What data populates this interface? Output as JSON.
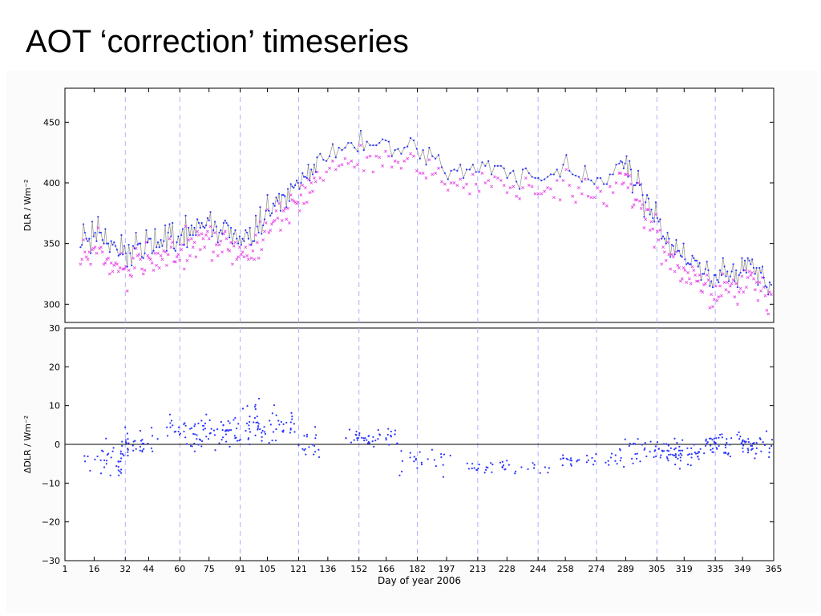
{
  "slide": {
    "title": "AOT ‘correction’ timeseries"
  },
  "colors": {
    "primary_points": "#2a35ff",
    "alt_points": "#e64ce6",
    "trace_line": "#9a9a9a",
    "guide_lines": "#b0b0ff",
    "zero_line": "#000000",
    "panel_background": "#fbfbfb"
  },
  "chart_data": [
    {
      "type": "scatter",
      "title": "",
      "xlabel": "",
      "ylabel": "DLR / Wm⁻²",
      "xlim": [
        1,
        365
      ],
      "ylim": [
        285,
        478
      ],
      "yticks": [
        "300",
        "350",
        "400",
        "450"
      ],
      "xticks": [],
      "legend": "none",
      "grid": false,
      "day_markers": [
        32,
        60,
        91,
        121,
        152,
        182,
        213,
        244,
        274,
        305,
        335
      ],
      "seasonal_envelope": {
        "x": [
          9,
          20,
          32,
          45,
          60,
          75,
          91,
          105,
          121,
          136,
          152,
          166,
          182,
          197,
          213,
          228,
          244,
          258,
          274,
          289,
          296,
          305,
          319,
          335,
          349,
          365
        ],
        "y": [
          350,
          355,
          342,
          352,
          358,
          365,
          352,
          375,
          398,
          430,
          432,
          432,
          425,
          412,
          415,
          408,
          405,
          412,
          400,
          415,
          400,
          362,
          340,
          322,
          333,
          318
        ]
      },
      "variability": 26,
      "series": [
        {
          "values": [],
          "marker": "dot",
          "line": true
        },
        {
          "values": [],
          "marker": "x",
          "line": false
        }
      ]
    },
    {
      "type": "scatter",
      "title": "",
      "xlabel": "Day of year 2006",
      "ylabel": "ΔDLR / Wm⁻²",
      "xlim": [
        1,
        365
      ],
      "ylim": [
        -30,
        30
      ],
      "yticks": [
        "−30",
        "−20",
        "−10",
        "0",
        "10",
        "20",
        "30"
      ],
      "xticks": [
        "1",
        "16",
        "32",
        "44",
        "60",
        "75",
        "91",
        "105",
        "121",
        "136",
        "152",
        "166",
        "182",
        "197",
        "213",
        "228",
        "244",
        "258",
        "274",
        "289",
        "305",
        "319",
        "335",
        "349",
        "365"
      ],
      "legend": "none",
      "grid": false,
      "day_markers": [
        32,
        60,
        91,
        121,
        152,
        182,
        213,
        244,
        274,
        305,
        335
      ],
      "clusters": [
        {
          "x": [
            10,
            30
          ],
          "mean": -4,
          "spread": 7,
          "n": 34
        },
        {
          "x": [
            30,
            50
          ],
          "mean": 0,
          "spread": 7,
          "n": 36
        },
        {
          "x": [
            50,
            90
          ],
          "mean": 3,
          "spread": 8,
          "n": 80
        },
        {
          "x": [
            90,
            120
          ],
          "mean": 5,
          "spread": 10,
          "n": 64
        },
        {
          "x": [
            120,
            132
          ],
          "mean": 0,
          "spread": 7,
          "n": 18
        },
        {
          "x": [
            145,
            172
          ],
          "mean": 2,
          "spread": 6,
          "n": 44
        },
        {
          "x": [
            172,
            200
          ],
          "mean": -4,
          "spread": 6,
          "n": 24
        },
        {
          "x": [
            205,
            250
          ],
          "mean": -6,
          "spread": 3,
          "n": 36
        },
        {
          "x": [
            255,
            285
          ],
          "mean": -4,
          "spread": 3,
          "n": 30
        },
        {
          "x": [
            285,
            330
          ],
          "mean": -2,
          "spread": 6,
          "n": 90
        },
        {
          "x": [
            330,
            365
          ],
          "mean": 0,
          "spread": 6,
          "n": 80
        }
      ],
      "series": [
        {
          "values": [],
          "marker": "dot",
          "line": false
        }
      ]
    }
  ]
}
